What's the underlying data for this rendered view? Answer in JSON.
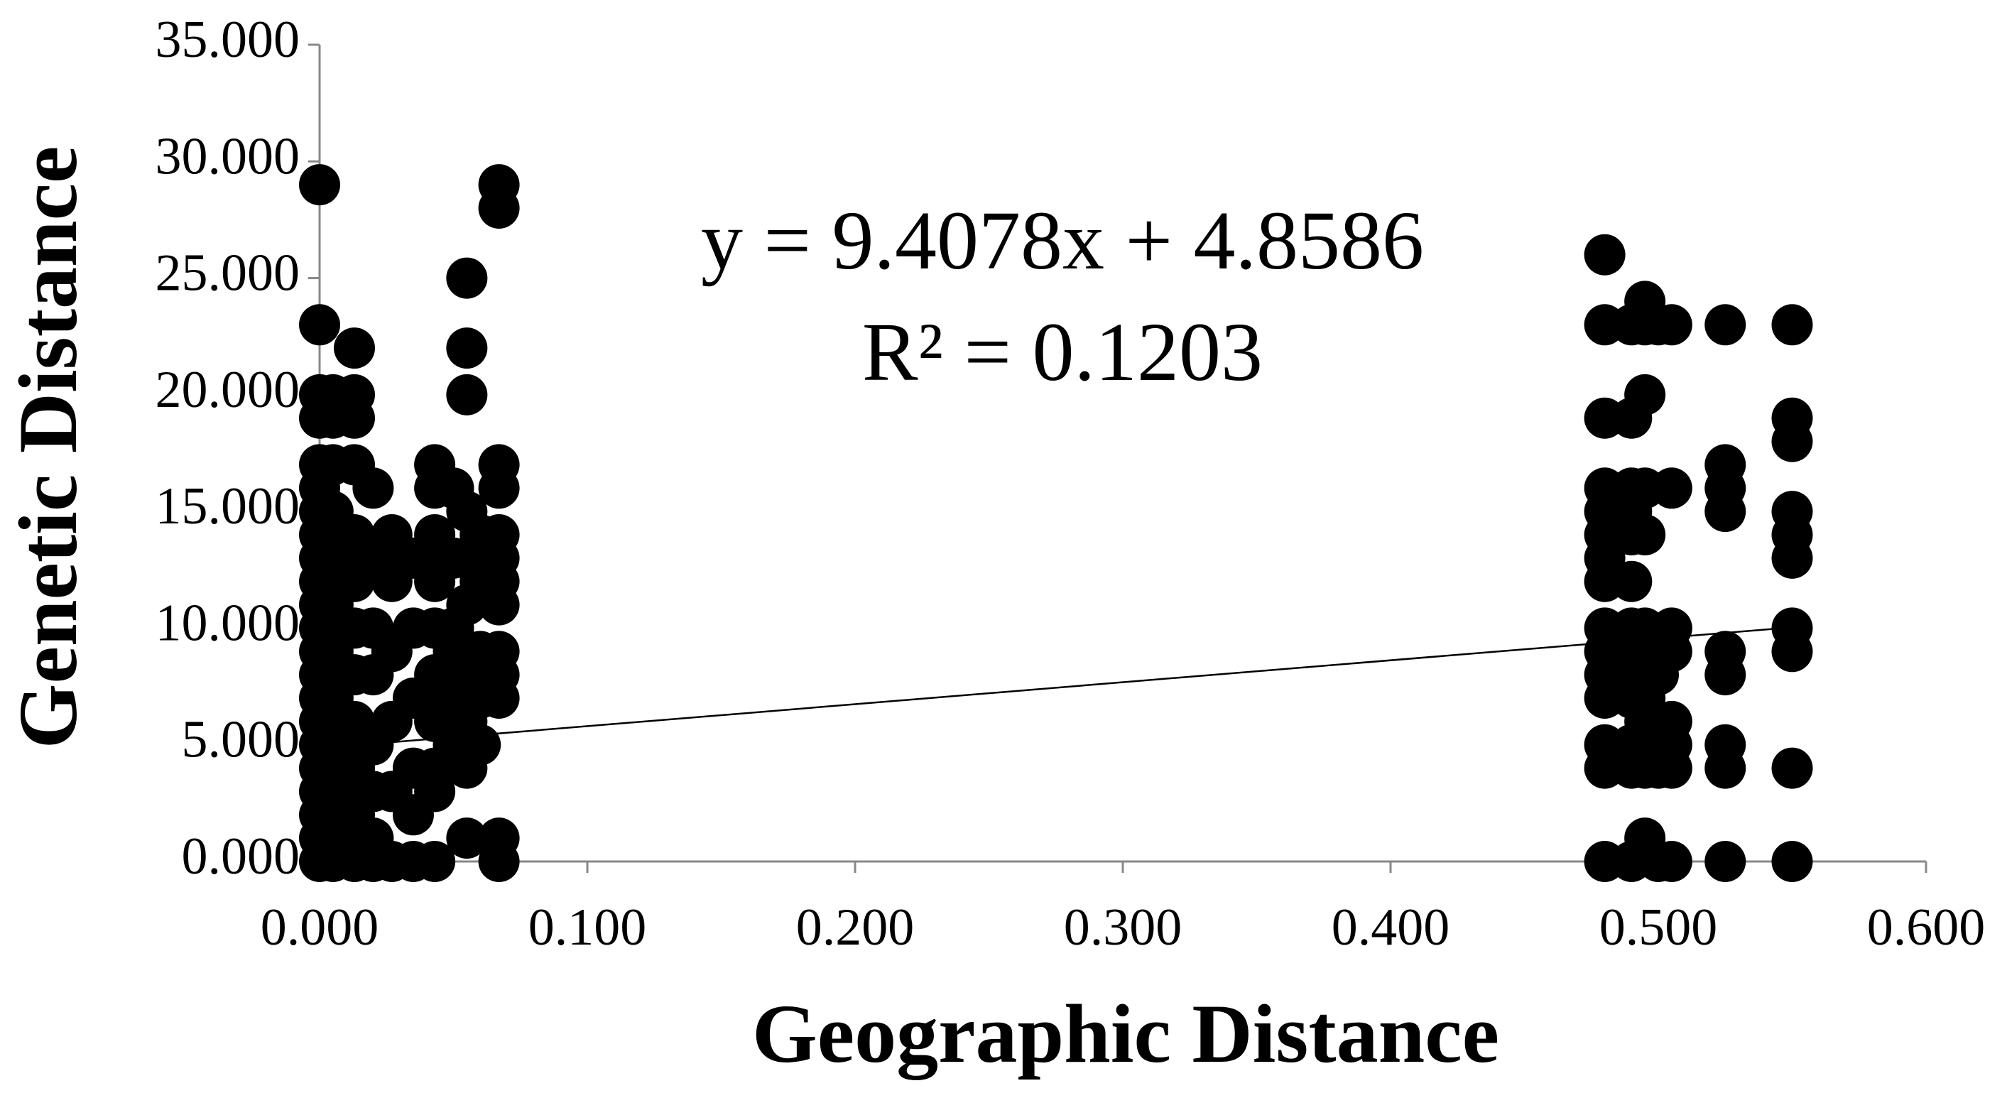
{
  "chart_data": {
    "type": "scatter",
    "x_label": "Geographic Distance",
    "y_label": "Genetic Distance",
    "annotations": [
      "y = 9.4078x + 4.8586",
      "R² = 0.1203"
    ],
    "trendline": {
      "slope": 9.4078,
      "intercept": 4.8586
    },
    "xlim": [
      0,
      0.6
    ],
    "xticks": [
      {
        "value": 0,
        "label": "0.000"
      },
      {
        "value": 0.1,
        "label": "0.100"
      },
      {
        "value": 0.2,
        "label": "0.200"
      },
      {
        "value": 0.3,
        "label": "0.300"
      },
      {
        "value": 0.4,
        "label": "0.400"
      },
      {
        "value": 0.5,
        "label": "0.500"
      },
      {
        "value": 0.6,
        "label": "0.600"
      }
    ],
    "ylim": [
      0,
      35
    ],
    "yticks": [
      {
        "value": 0,
        "label": "0.000"
      },
      {
        "value": 5,
        "label": "5.000"
      },
      {
        "value": 10,
        "label": "10.000"
      },
      {
        "value": 15,
        "label": "15.000"
      },
      {
        "value": 20,
        "label": "20.000"
      },
      {
        "value": 25,
        "label": "25.000"
      },
      {
        "value": 30,
        "label": "30.000"
      },
      {
        "value": 35,
        "label": "35.000"
      }
    ],
    "grid": false,
    "series": [
      {
        "color": "#000000",
        "x": [
          0,
          0,
          0,
          0,
          0,
          0,
          0,
          0,
          0,
          0,
          0,
          0,
          0,
          0,
          0,
          0,
          0,
          0,
          0,
          0,
          0,
          0,
          0.005,
          0.005,
          0.005,
          0.005,
          0.005,
          0.005,
          0.005,
          0.005,
          0.005,
          0.005,
          0.005,
          0.005,
          0.013,
          0.013,
          0.013,
          0.013,
          0.013,
          0.013,
          0.013,
          0.013,
          0.013,
          0.013,
          0.013,
          0.013,
          0.02,
          0.02,
          0.02,
          0.02,
          0.02,
          0.02,
          0.02,
          0.02,
          0.027,
          0.027,
          0.027,
          0.027,
          0.027,
          0.027,
          0.035,
          0.035,
          0.035,
          0.035,
          0.035,
          0.035,
          0.043,
          0.043,
          0.043,
          0.043,
          0.043,
          0.043,
          0.043,
          0.043,
          0.043,
          0.043,
          0.05,
          0.05,
          0.05,
          0.05,
          0.05,
          0.05,
          0.055,
          0.055,
          0.055,
          0.055,
          0.055,
          0.055,
          0.055,
          0.055,
          0.055,
          0.055,
          0.06,
          0.06,
          0.06,
          0.06,
          0.06,
          0.067,
          0.067,
          0.067,
          0.067,
          0.067,
          0.067,
          0.067,
          0.067,
          0.067,
          0.067,
          0.067,
          0.067,
          0.067,
          0.48,
          0.48,
          0.48,
          0.48,
          0.48,
          0.48,
          0.48,
          0.48,
          0.48,
          0.48,
          0.48,
          0.48,
          0.48,
          0.48,
          0.48,
          0.49,
          0.49,
          0.49,
          0.49,
          0.49,
          0.49,
          0.49,
          0.49,
          0.49,
          0.49,
          0.49,
          0.49,
          0.49,
          0.495,
          0.495,
          0.495,
          0.495,
          0.495,
          0.495,
          0.495,
          0.495,
          0.495,
          0.495,
          0.495,
          0.495,
          0.5,
          0.5,
          0.5,
          0.5,
          0.5,
          0.5,
          0.505,
          0.505,
          0.505,
          0.505,
          0.505,
          0.505,
          0.505,
          0.505,
          0.525,
          0.525,
          0.525,
          0.525,
          0.525,
          0.525,
          0.525,
          0.525,
          0.525,
          0.55,
          0.55,
          0.55,
          0.55,
          0.55,
          0.55,
          0.55,
          0.55,
          0.55,
          0.55
        ],
        "values": [
          29,
          23,
          20,
          19,
          17,
          16,
          15,
          14,
          13,
          12,
          11,
          10,
          9,
          8,
          7,
          6,
          5,
          4,
          3,
          2,
          1,
          0,
          20,
          19,
          17,
          15,
          13,
          11,
          9,
          7,
          5,
          3,
          1,
          0,
          22,
          20,
          19,
          17,
          14,
          12,
          10,
          8,
          6,
          4,
          2,
          0,
          16,
          13,
          10,
          8,
          5,
          3,
          1,
          0,
          14,
          12,
          9,
          6,
          3,
          0,
          13,
          10,
          7,
          4,
          2,
          0,
          17,
          16,
          14,
          12,
          10,
          8,
          6,
          4,
          3,
          0,
          16,
          13,
          10,
          9,
          7,
          5,
          25,
          22,
          20,
          15,
          13,
          11,
          8,
          6,
          4,
          1,
          14,
          12,
          9,
          7,
          5,
          29,
          28,
          17,
          16,
          14,
          13,
          12,
          11,
          9,
          8,
          7,
          1,
          0,
          26,
          23,
          19,
          16,
          15,
          14,
          13,
          12,
          10,
          9,
          8,
          7,
          5,
          4,
          0,
          23,
          19,
          16,
          15,
          14,
          12,
          10,
          9,
          8,
          7,
          5,
          4,
          0,
          24,
          23,
          20,
          16,
          14,
          10,
          9,
          7,
          6,
          5,
          4,
          1,
          23,
          8,
          6,
          5,
          4,
          0,
          23,
          16,
          10,
          9,
          6,
          5,
          4,
          0,
          23,
          17,
          16,
          15,
          9,
          8,
          5,
          4,
          0,
          23,
          19,
          18,
          15,
          14,
          13,
          10,
          9,
          4,
          0
        ]
      }
    ]
  }
}
